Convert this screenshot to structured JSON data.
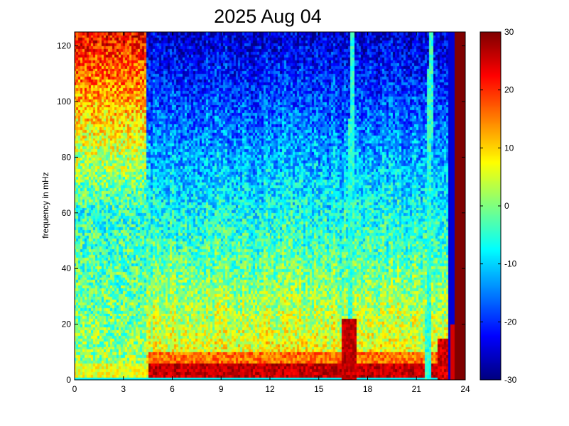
{
  "chart_data": {
    "type": "heatmap",
    "title": "2025 Aug 04",
    "xlabel": "",
    "ylabel": "frequency in mHz",
    "xlim": [
      0,
      24
    ],
    "ylim": [
      0,
      125
    ],
    "x_ticks": [
      "0",
      "3",
      "6",
      "9",
      "12",
      "15",
      "18",
      "21",
      "24"
    ],
    "y_ticks": [
      "0",
      "20",
      "40",
      "60",
      "80",
      "100",
      "120"
    ],
    "colorbar": {
      "colormap": "jet",
      "range": [
        -30,
        30
      ],
      "ticks": [
        "-30",
        "-20",
        "-10",
        "0",
        "10",
        "20",
        "30"
      ]
    },
    "grid": false,
    "features": [
      {
        "name": "low-frequency band",
        "freq_range": [
          1,
          6
        ],
        "time_range": [
          4.5,
          23
        ],
        "level": 28
      },
      {
        "name": "mid-frequency noise",
        "freq_range": [
          8,
          50
        ],
        "time_range": [
          4.5,
          16.5
        ],
        "level": 8
      },
      {
        "name": "high-frequency quiet",
        "freq_range": [
          70,
          125
        ],
        "time_range": [
          0,
          4.5
        ],
        "level": 30
      },
      {
        "name": "transient line",
        "time": 16.9,
        "level": -5
      },
      {
        "name": "transient line",
        "time": 21.7,
        "level": -5
      },
      {
        "name": "data end",
        "time": 23.0,
        "level": 30
      }
    ]
  }
}
